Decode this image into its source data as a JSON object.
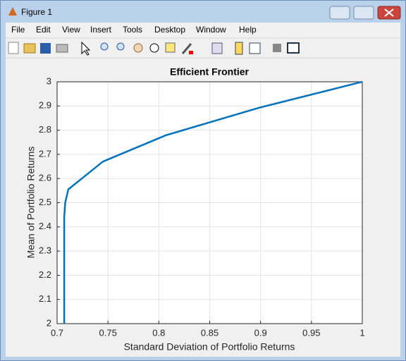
{
  "window": {
    "title": "Figure 1",
    "menu": [
      "File",
      "Edit",
      "View",
      "Insert",
      "Tools",
      "Desktop",
      "Window",
      "Help"
    ]
  },
  "chart_data": {
    "type": "line",
    "title": "Efficient Frontier",
    "x_label": "Standard Deviation of Portfolio Returns",
    "y_label": "Mean of Portfolio Returns",
    "x": [
      0.707,
      0.707,
      0.707,
      0.708,
      0.711,
      0.745,
      0.807,
      0.898,
      1.0
    ],
    "series": [
      {
        "color": "#0072bd",
        "values": [
          2.0,
          2.2,
          2.44,
          2.5,
          2.555,
          2.67,
          2.779,
          2.892,
          3.0
        ]
      }
    ],
    "xlim": [
      0.7,
      1
    ],
    "xticks": [
      0.7,
      0.75,
      0.8,
      0.85,
      0.9,
      0.95,
      1
    ],
    "ylim": [
      2,
      3
    ],
    "yticks": [
      2,
      2.1,
      2.2,
      2.3,
      2.4,
      2.5,
      2.6,
      2.7,
      2.8,
      2.9,
      3
    ],
    "grid": true
  }
}
